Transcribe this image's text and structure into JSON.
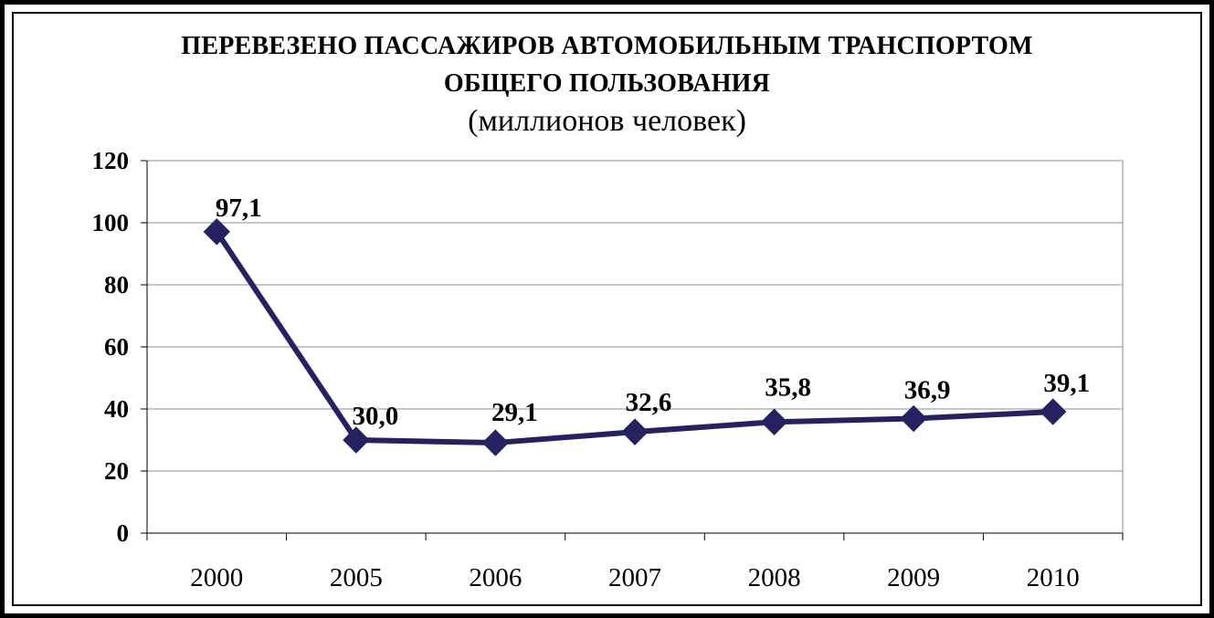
{
  "chart_data": {
    "type": "line",
    "title_lines": [
      "ПЕРЕВЕЗЕНО ПАССАЖИРОВ АВТОМОБИЛЬНЫМ ТРАНСПОРТОМ",
      "ОБЩЕГО ПОЛЬЗОВАНИЯ"
    ],
    "subtitle": "(миллионов человек)",
    "categories": [
      "2000",
      "2005",
      "2006",
      "2007",
      "2008",
      "2009",
      "2010"
    ],
    "values": [
      97.1,
      30.0,
      29.1,
      32.6,
      35.8,
      36.9,
      39.1
    ],
    "data_labels": [
      "97,1",
      "30,0",
      "29,1",
      "32,6",
      "35,8",
      "36,9",
      "39,1"
    ],
    "yticks": [
      "0",
      "20",
      "40",
      "60",
      "80",
      "100",
      "120"
    ],
    "ylim": [
      0,
      120
    ],
    "grid": true,
    "legend": "none",
    "marker": "diamond",
    "line_color": "#262262"
  }
}
